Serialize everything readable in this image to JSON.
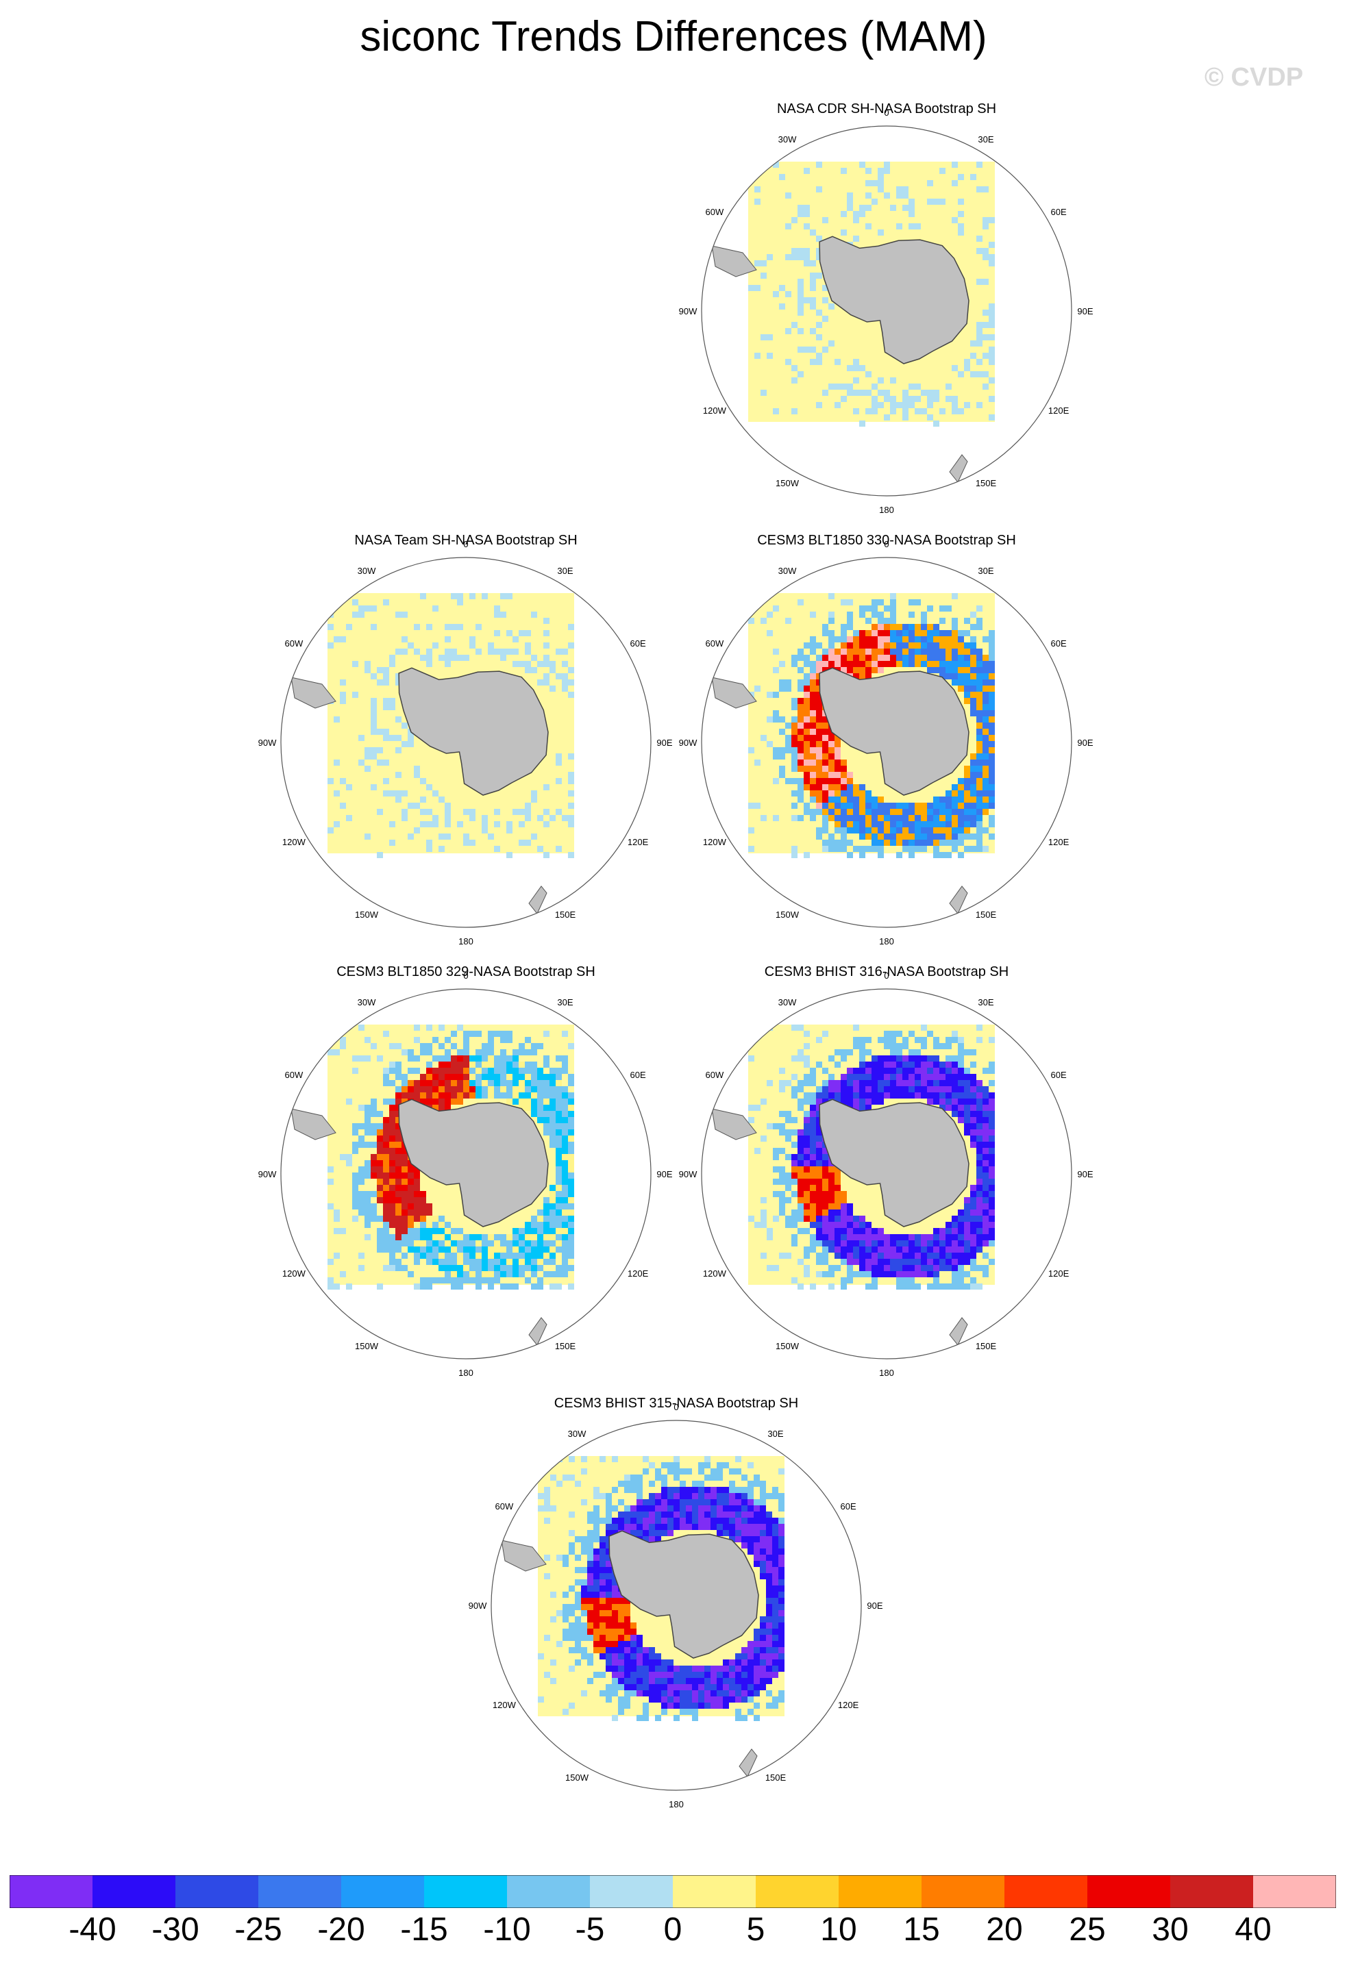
{
  "title": "siconc Trends Differences (MAM)",
  "watermark": "© CVDP",
  "land_color": "#c0c0c0",
  "background_color": "#fff9a1",
  "meridian_labels": {
    "top": "0",
    "tr": "30E",
    "rt": "60E",
    "right": "90E",
    "rb": "120E",
    "br": "150E",
    "bottom": "180",
    "bl": "150W",
    "lb": "120W",
    "left": "90W",
    "lt": "60W",
    "tl": "30W"
  },
  "panels": [
    {
      "title": "NASA CDR SH-NASA Bootstrap SH",
      "pattern": "noise"
    },
    {
      "title": "NASA Team SH-NASA Bootstrap SH",
      "pattern": "noise"
    },
    {
      "title": "CESM3 BLT1850 330-NASA Bootstrap SH",
      "pattern": "mixed"
    },
    {
      "title": "CESM3 BLT1850 329-NASA Bootstrap SH",
      "pattern": "warm"
    },
    {
      "title": "CESM3 BHIST 316-NASA Bootstrap SH",
      "pattern": "cool"
    },
    {
      "title": "CESM3 BHIST 315-NASA Bootstrap SH",
      "pattern": "cool"
    }
  ],
  "chart_data": {
    "type": "heatmap",
    "projection": "south polar stereographic",
    "variable": "siconc",
    "season": "MAM",
    "colorbar": {
      "labels": [
        "-40",
        "-30",
        "-25",
        "-20",
        "-15",
        "-10",
        "-5",
        "0",
        "5",
        "10",
        "15",
        "20",
        "25",
        "30",
        "40"
      ],
      "colors": [
        "#7f2df5",
        "#2c0cf8",
        "#2e4ae6",
        "#3a78ee",
        "#1f9bfa",
        "#00c5fa",
        "#77c6f0",
        "#b1dff2",
        "#fff48a",
        "#ffd42e",
        "#ffab00",
        "#ff7d00",
        "#ff3700",
        "#ec0000",
        "#cc2020",
        "#ffb6b6"
      ]
    }
  }
}
